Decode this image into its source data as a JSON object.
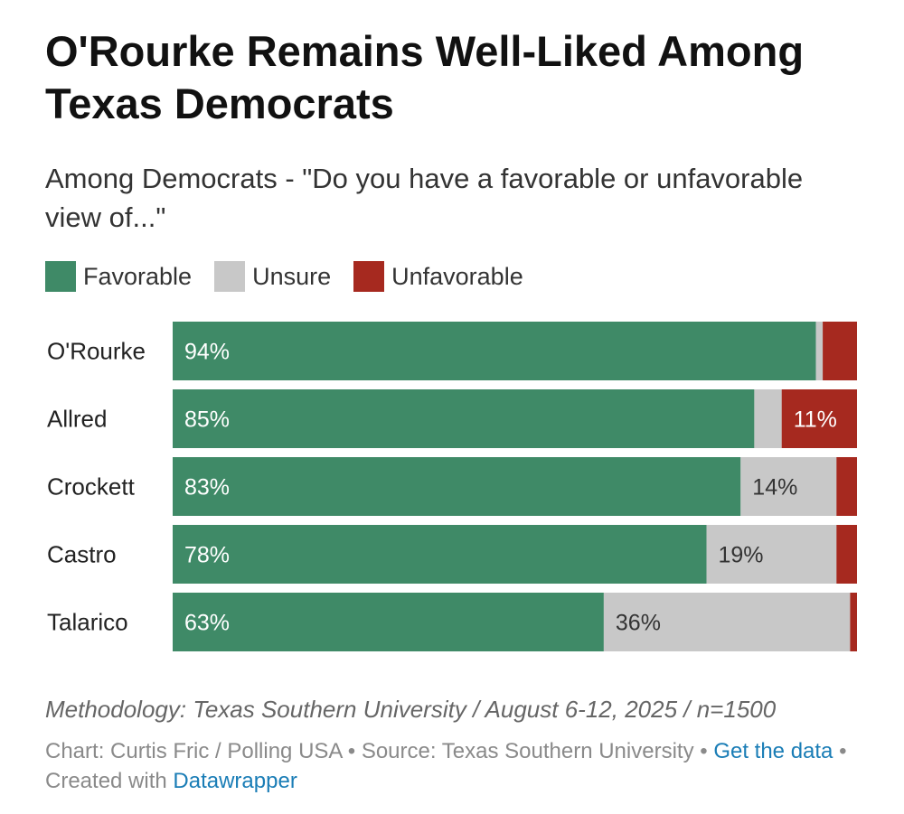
{
  "title": "O'Rourke Remains Well-Liked Among Texas Democrats",
  "subtitle": "Among Democrats - \"Do you have a favorable or unfavorable view of...\"",
  "legend": [
    {
      "label": "Favorable",
      "color": "#3f8a67"
    },
    {
      "label": "Unsure",
      "color": "#c8c8c8"
    },
    {
      "label": "Unfavorable",
      "color": "#a6291f"
    }
  ],
  "chart_data": {
    "type": "bar",
    "orientation": "horizontal",
    "stacked": true,
    "xlim": [
      0,
      100
    ],
    "categories": [
      "O'Rourke",
      "Allred",
      "Crockett",
      "Castro",
      "Talarico"
    ],
    "series": [
      {
        "name": "Favorable",
        "color": "#3f8a67",
        "values": [
          94,
          85,
          83,
          78,
          63
        ],
        "labels": [
          "94%",
          "85%",
          "83%",
          "78%",
          "63%"
        ]
      },
      {
        "name": "Unsure",
        "color": "#c8c8c8",
        "values": [
          1,
          4,
          14,
          19,
          36
        ],
        "labels": [
          "",
          "",
          "14%",
          "19%",
          "36%"
        ]
      },
      {
        "name": "Unfavorable",
        "color": "#a6291f",
        "values": [
          5,
          11,
          3,
          3,
          1
        ],
        "labels": [
          "",
          "11%",
          "",
          "",
          ""
        ]
      }
    ]
  },
  "methodology": "Methodology: Texas Southern University / August 6-12, 2025 / n=1500",
  "credits": {
    "text1": "Chart: Curtis Fric / Polling USA • Source: Texas Southern University • ",
    "link1": "Get the data",
    "text2": " • Created with ",
    "link2": "Datawrapper"
  }
}
